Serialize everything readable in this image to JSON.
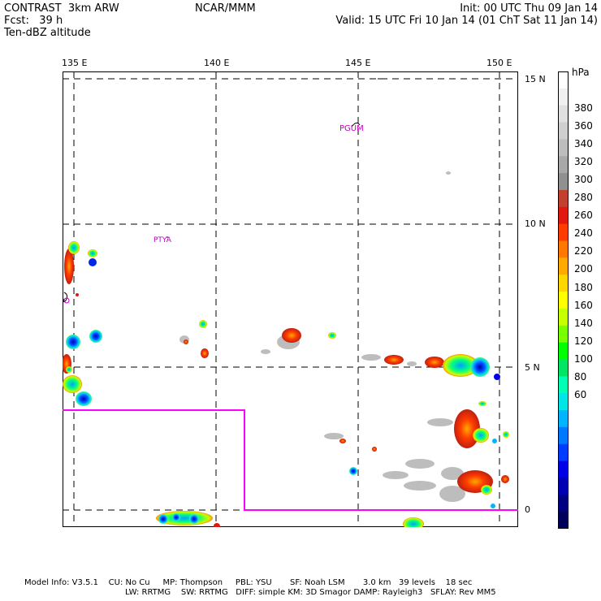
{
  "header": {
    "title": "CONTRAST  3km ARW",
    "forecast": "Fcst:   39 h",
    "field": "Ten-dBZ altitude",
    "center": "NCAR/MMM",
    "init": "Init: 00 UTC Thu 09 Jan 14",
    "valid": "Valid: 15 UTC Fri 10 Jan 14 (01 ChT Sat 11 Jan 14)"
  },
  "map": {
    "lon_labels": [
      "135 E",
      "140 E",
      "145 E",
      "150 E"
    ],
    "lat_labels": [
      "15 N",
      "10 N",
      "5 N",
      "0"
    ],
    "stations": [
      "PGUM",
      "PTYA"
    ],
    "domain_box_color": "#ff00ff",
    "gridline_color": "#000000"
  },
  "colorbar": {
    "unit": "hPa",
    "labels": [
      "380",
      "360",
      "340",
      "320",
      "300",
      "280",
      "260",
      "240",
      "220",
      "200",
      "180",
      "160",
      "140",
      "120",
      "100",
      "80",
      "60"
    ],
    "colors": [
      "#ffffff",
      "#f0f0f0",
      "#e0e0e0",
      "#cfcfcf",
      "#bdbdbd",
      "#a8a8a8",
      "#909090",
      "#c24030",
      "#e01810",
      "#ff3c00",
      "#ff7800",
      "#ffaa00",
      "#ffd700",
      "#ffff00",
      "#c8ff00",
      "#78ff00",
      "#00ff00",
      "#00e664",
      "#00ffb4",
      "#00e6e6",
      "#00b4ff",
      "#0078ff",
      "#003cff",
      "#0000e6",
      "#0000b4",
      "#000082",
      "#00005a"
    ]
  },
  "footer": {
    "line1": "Model Info: V3.5.1    CU: No Cu     MP: Thompson     PBL: YSU       SF: Noah LSM       3.0 km   39 levels    18 sec",
    "line2": "LW: RRTMG    SW: RRTMG   DIFF: simple KM: 3D Smagor DAMP: Rayleigh3   SFLAY: Rev MM5"
  }
}
